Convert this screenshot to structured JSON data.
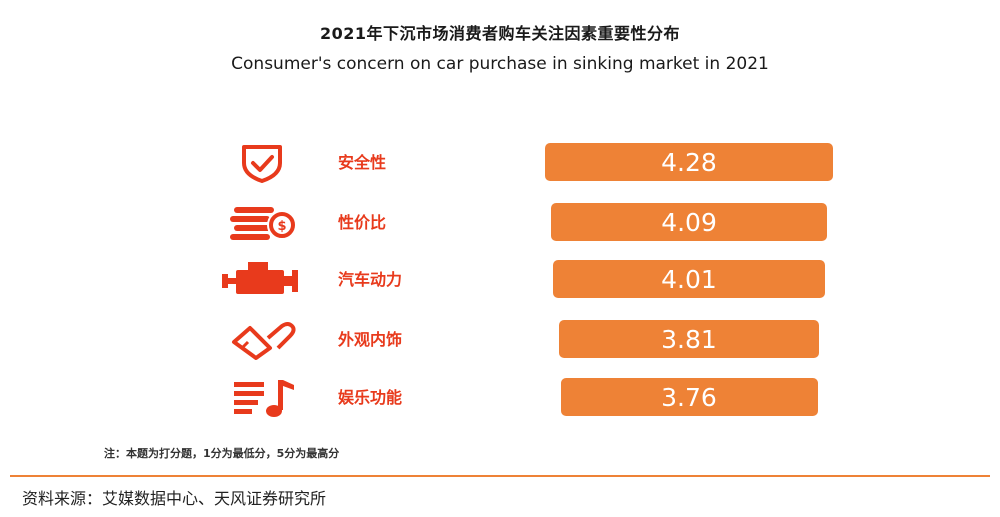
{
  "title_cn": "2021年下沉市场消费者购车关注因素重要性分布",
  "title_en": "Consumer's concern on car purchase in sinking market in 2021",
  "note": "注：本题为打分题，1分为最低分，5分为最高分",
  "source": "资料来源：艾媒数据中心、天风证券研究所",
  "colors": {
    "accent": "#e83a1c",
    "bar": "#ee8236",
    "bar_text": "#ffffff"
  },
  "chart_data": {
    "type": "bar",
    "orientation": "horizontal",
    "title": "2021年下沉市场消费者购车关注因素重要性分布",
    "subtitle": "Consumer's concern on car purchase in sinking market in 2021",
    "categories": [
      "安全性",
      "性价比",
      "汽车动力",
      "外观内饰",
      "娱乐功能"
    ],
    "values": [
      4.28,
      4.09,
      4.01,
      3.81,
      3.76
    ],
    "labels": [
      "4.28",
      "4.09",
      "4.01",
      "3.81",
      "3.76"
    ],
    "icons": [
      "shield-check-icon",
      "coins-dollar-icon",
      "engine-icon",
      "paint-brush-icon",
      "music-note-icon"
    ],
    "xlabel": "",
    "ylabel": "",
    "grid": false,
    "legend": "none"
  }
}
